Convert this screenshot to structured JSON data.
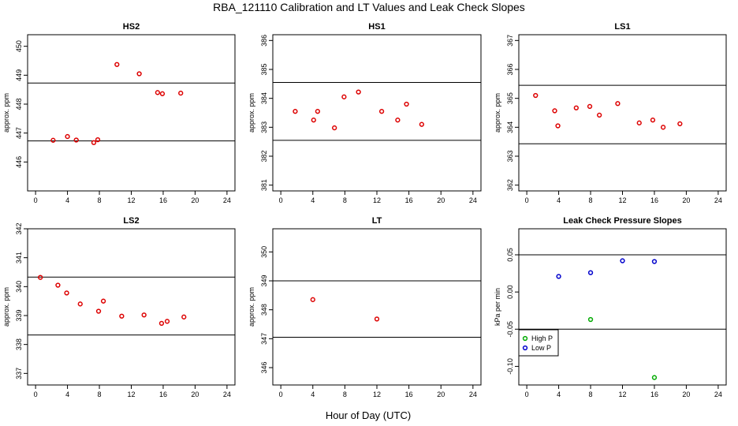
{
  "figure": {
    "title": "RBA_121110  Calibration and LT Values and Leak Check Slopes",
    "xlabel": "Hour of Day (UTC)"
  },
  "chart_data": [
    {
      "type": "scatter",
      "title": "HS2",
      "ylabel": "approx. ppm",
      "xlim": [
        -1,
        25
      ],
      "ylim": [
        445,
        450.4
      ],
      "xticks": [
        "0",
        "4",
        "8",
        "12",
        "16",
        "20",
        "24"
      ],
      "yticks": [
        "446",
        "447",
        "448",
        "449",
        "450"
      ],
      "hlines": [
        448.73,
        446.73
      ],
      "color": "#dd0000",
      "points": [
        [
          2.2,
          446.75
        ],
        [
          4.0,
          446.88
        ],
        [
          5.1,
          446.76
        ],
        [
          7.3,
          446.67
        ],
        [
          7.8,
          446.77
        ],
        [
          10.2,
          449.37
        ],
        [
          13.0,
          449.05
        ],
        [
          15.3,
          448.4
        ],
        [
          15.9,
          448.36
        ],
        [
          18.2,
          448.38
        ]
      ]
    },
    {
      "type": "scatter",
      "title": "HS1",
      "ylabel": "approx. ppm",
      "xlim": [
        -1,
        25
      ],
      "ylim": [
        380.8,
        386.2
      ],
      "xticks": [
        "0",
        "4",
        "8",
        "12",
        "16",
        "20",
        "24"
      ],
      "yticks": [
        "381",
        "382",
        "383",
        "384",
        "385",
        "386"
      ],
      "hlines": [
        384.55,
        382.55
      ],
      "color": "#dd0000",
      "points": [
        [
          1.8,
          383.55
        ],
        [
          4.1,
          383.25
        ],
        [
          4.6,
          383.55
        ],
        [
          6.7,
          382.98
        ],
        [
          7.9,
          384.05
        ],
        [
          9.7,
          384.22
        ],
        [
          12.6,
          383.55
        ],
        [
          14.6,
          383.25
        ],
        [
          15.7,
          383.8
        ],
        [
          17.6,
          383.1
        ]
      ]
    },
    {
      "type": "scatter",
      "title": "LS1",
      "ylabel": "approx. ppm",
      "xlim": [
        -1,
        25
      ],
      "ylim": [
        361.8,
        367.2
      ],
      "xticks": [
        "0",
        "4",
        "8",
        "12",
        "16",
        "20",
        "24"
      ],
      "yticks": [
        "362",
        "363",
        "364",
        "365",
        "366",
        "367"
      ],
      "hlines": [
        365.45,
        363.43
      ],
      "color": "#dd0000",
      "points": [
        [
          1.1,
          365.1
        ],
        [
          3.5,
          364.57
        ],
        [
          3.9,
          364.05
        ],
        [
          6.2,
          364.67
        ],
        [
          7.9,
          364.72
        ],
        [
          9.1,
          364.42
        ],
        [
          11.4,
          364.82
        ],
        [
          14.1,
          364.15
        ],
        [
          15.8,
          364.25
        ],
        [
          17.1,
          364.0
        ],
        [
          19.2,
          364.12
        ]
      ]
    },
    {
      "type": "scatter",
      "title": "LS2",
      "ylabel": "approx. ppm",
      "xlim": [
        -1,
        25
      ],
      "ylim": [
        336.6,
        342.0
      ],
      "xticks": [
        "0",
        "4",
        "8",
        "12",
        "16",
        "20",
        "24"
      ],
      "yticks": [
        "337",
        "338",
        "339",
        "340",
        "341",
        "342"
      ],
      "hlines": [
        340.33,
        338.33
      ],
      "color": "#dd0000",
      "points": [
        [
          0.6,
          340.32
        ],
        [
          2.8,
          340.05
        ],
        [
          3.9,
          339.78
        ],
        [
          5.6,
          339.4
        ],
        [
          7.9,
          339.15
        ],
        [
          8.5,
          339.5
        ],
        [
          10.8,
          338.98
        ],
        [
          13.6,
          339.02
        ],
        [
          15.8,
          338.73
        ],
        [
          16.5,
          338.8
        ],
        [
          18.6,
          338.95
        ]
      ]
    },
    {
      "type": "scatter",
      "title": "LT",
      "ylabel": "approx. ppm",
      "xlim": [
        -1,
        25
      ],
      "ylim": [
        345.4,
        350.8
      ],
      "xticks": [
        "0",
        "4",
        "8",
        "12",
        "16",
        "20",
        "24"
      ],
      "yticks": [
        "346",
        "347",
        "348",
        "349",
        "350"
      ],
      "hlines": [
        349.0,
        347.05
      ],
      "color": "#dd0000",
      "points": [
        [
          4.0,
          348.35
        ],
        [
          12.0,
          347.68
        ]
      ]
    },
    {
      "type": "scatter",
      "title": "Leak Check Pressure Slopes",
      "ylabel": "kPa per min",
      "xlim": [
        -1,
        25
      ],
      "ylim": [
        -0.125,
        0.085
      ],
      "xticks": [
        "0",
        "4",
        "8",
        "12",
        "16",
        "20",
        "24"
      ],
      "yticks": [
        "-0.10",
        "-0.05",
        "0.00",
        "0.05"
      ],
      "yticks_values": [
        -0.1,
        -0.05,
        0.0,
        0.05
      ],
      "hlines": [
        0.05,
        -0.05
      ],
      "series": [
        {
          "name": "High P",
          "color": "#00aa00",
          "points": [
            [
              8.0,
              -0.037
            ],
            [
              16.0,
              -0.115
            ]
          ]
        },
        {
          "name": "Low P",
          "color": "#0000cc",
          "points": [
            [
              4.0,
              0.021
            ],
            [
              8.0,
              0.026
            ],
            [
              12.0,
              0.042
            ],
            [
              16.0,
              0.041
            ]
          ]
        }
      ],
      "legend": "bottom-left"
    }
  ]
}
